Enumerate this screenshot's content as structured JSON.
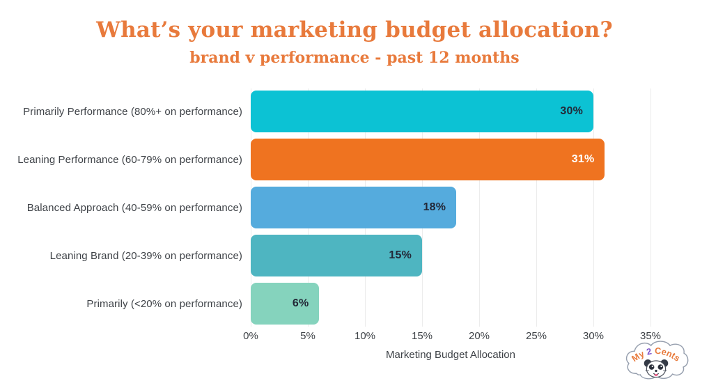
{
  "title": "What’s your marketing budget allocation?",
  "subtitle": "brand v performance - past 12 months",
  "chart_data": {
    "type": "bar",
    "orientation": "horizontal",
    "title": "What’s your marketing budget allocation?",
    "subtitle": "brand v performance - past 12 months",
    "categories": [
      "Primarily Performance (80%+ on performance)",
      "Leaning Performance (60-79% on performance)",
      "Balanced Approach (40-59% on performance)",
      "Leaning Brand (20-39% on performance)",
      "Primarily (<20% on performance)"
    ],
    "values": [
      30,
      31,
      18,
      15,
      6
    ],
    "value_labels": [
      "30%",
      "31%",
      "18%",
      "15%",
      "6%"
    ],
    "bar_colors": [
      "#0cc2d4",
      "#ef7320",
      "#55abdd",
      "#4eb5c1",
      "#85d3bd"
    ],
    "value_label_colors": [
      "#232837",
      "#ffffff",
      "#232837",
      "#232837",
      "#232837"
    ],
    "xlabel": "Marketing Budget Allocation",
    "x_ticks": [
      "0%",
      "5%",
      "10%",
      "15%",
      "20%",
      "25%",
      "30%",
      "35%"
    ],
    "x_tick_values": [
      0,
      5,
      10,
      15,
      20,
      25,
      30,
      35
    ],
    "xlim": [
      0,
      35
    ],
    "grid": "vertical-only",
    "legend": "none"
  },
  "colors": {
    "title_orange": "#e87a3c",
    "axis_text": "#3f4348",
    "gridline": "#ececec",
    "background": "#ffffff"
  },
  "logo": {
    "name": "My 2 Cents",
    "text_my": "My ",
    "text_2": "2",
    "text_cents": " Cents",
    "text_color": "#e87a3c",
    "accent_color": "#7a4fc9"
  }
}
